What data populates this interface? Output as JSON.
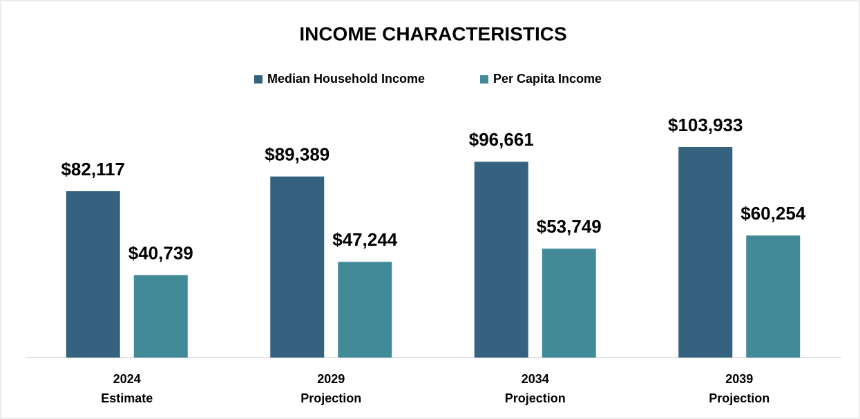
{
  "chart_data": {
    "type": "bar",
    "title": "INCOME CHARACTERISTICS",
    "categories": [
      [
        "2024",
        "Estimate"
      ],
      [
        "2029",
        "Projection"
      ],
      [
        "2034",
        "Projection"
      ],
      [
        "2039",
        "Projection"
      ]
    ],
    "series": [
      {
        "name": "Median Household Income",
        "color": "#35637f",
        "values": [
          82117,
          89389,
          96661,
          103933
        ],
        "value_labels": [
          "$82,117",
          "$89,389",
          "$96,661",
          "$103,933"
        ]
      },
      {
        "name": "Per Capita Income",
        "color": "#438a99",
        "values": [
          40739,
          47244,
          53749,
          60254
        ],
        "value_labels": [
          "$40,739",
          "$47,244",
          "$53,749",
          "$60,254"
        ]
      }
    ],
    "legend": "top"
  }
}
